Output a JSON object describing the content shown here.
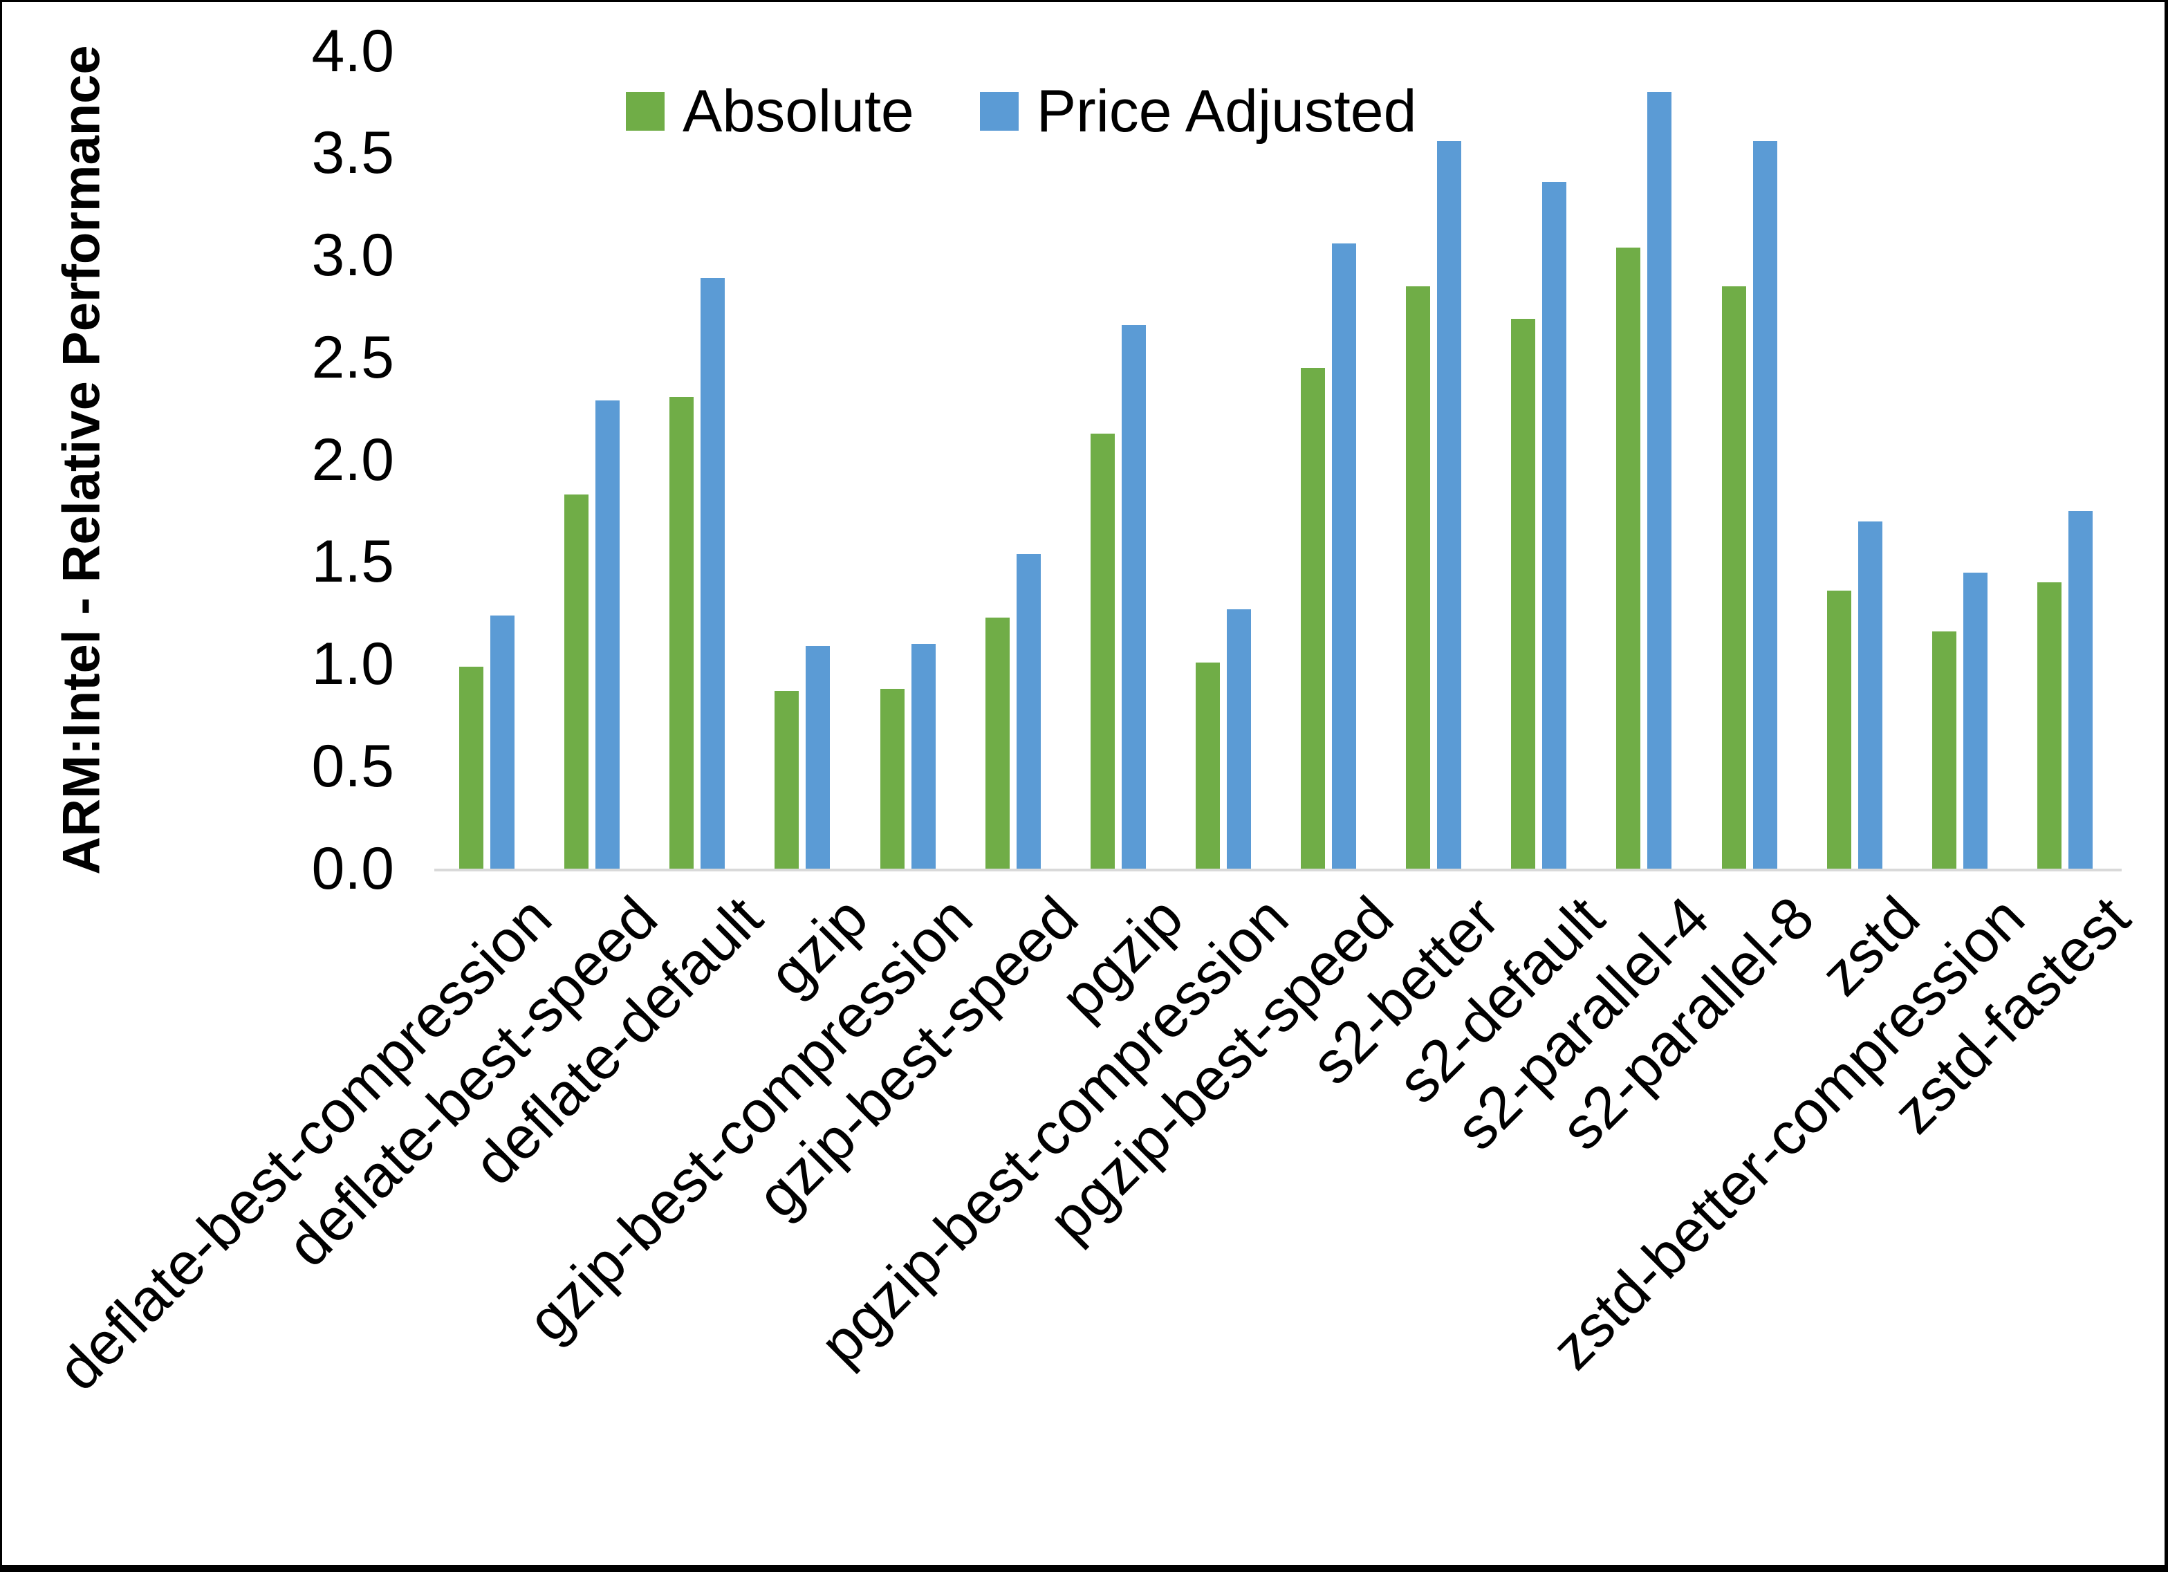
{
  "figure": {
    "ylabel": "ARM:Intel - Relative Performance",
    "background": "#ffffff",
    "frame_color": "#000000",
    "axis_line_color": "#D9D9D9"
  },
  "legend": {
    "position": "top-center-inside",
    "items": [
      {
        "label": "Absolute",
        "color": "#70AD47"
      },
      {
        "label": "Price Adjusted",
        "color": "#5B9BD5"
      }
    ]
  },
  "chart_data": {
    "type": "bar",
    "title": "",
    "xlabel": "",
    "ylabel": "ARM:Intel - Relative Performance",
    "ylim": [
      0,
      4
    ],
    "ytick_step": 0.5,
    "yticks": [
      0,
      0.5,
      1.0,
      1.5,
      2.0,
      2.5,
      3.0,
      3.5,
      4.0
    ],
    "grid": false,
    "legend_position": "top-center-inside",
    "categories": [
      "deflate-best-compression",
      "deflate-best-speed",
      "deflate-default",
      "gzip",
      "gzip-best-compression",
      "gzip-best-speed",
      "pgzip",
      "pgzip-best-compression",
      "pgzip-best-speed",
      "s2-better",
      "s2-default",
      "s2-parallel-4",
      "s2-parallel-8",
      "zstd",
      "zstd-better-compression",
      "zstd-fastest"
    ],
    "series": [
      {
        "name": "Absolute",
        "color": "#70AD47",
        "values": [
          1.0,
          1.84,
          2.32,
          0.88,
          0.89,
          1.24,
          2.14,
          1.02,
          2.46,
          2.86,
          2.7,
          3.05,
          2.86,
          1.37,
          1.17,
          1.41
        ]
      },
      {
        "name": "Price Adjusted",
        "color": "#5B9BD5",
        "values": [
          1.25,
          2.3,
          2.9,
          1.1,
          1.11,
          1.55,
          2.67,
          1.28,
          3.07,
          3.57,
          3.37,
          3.81,
          3.57,
          1.71,
          1.46,
          1.76
        ]
      }
    ]
  }
}
